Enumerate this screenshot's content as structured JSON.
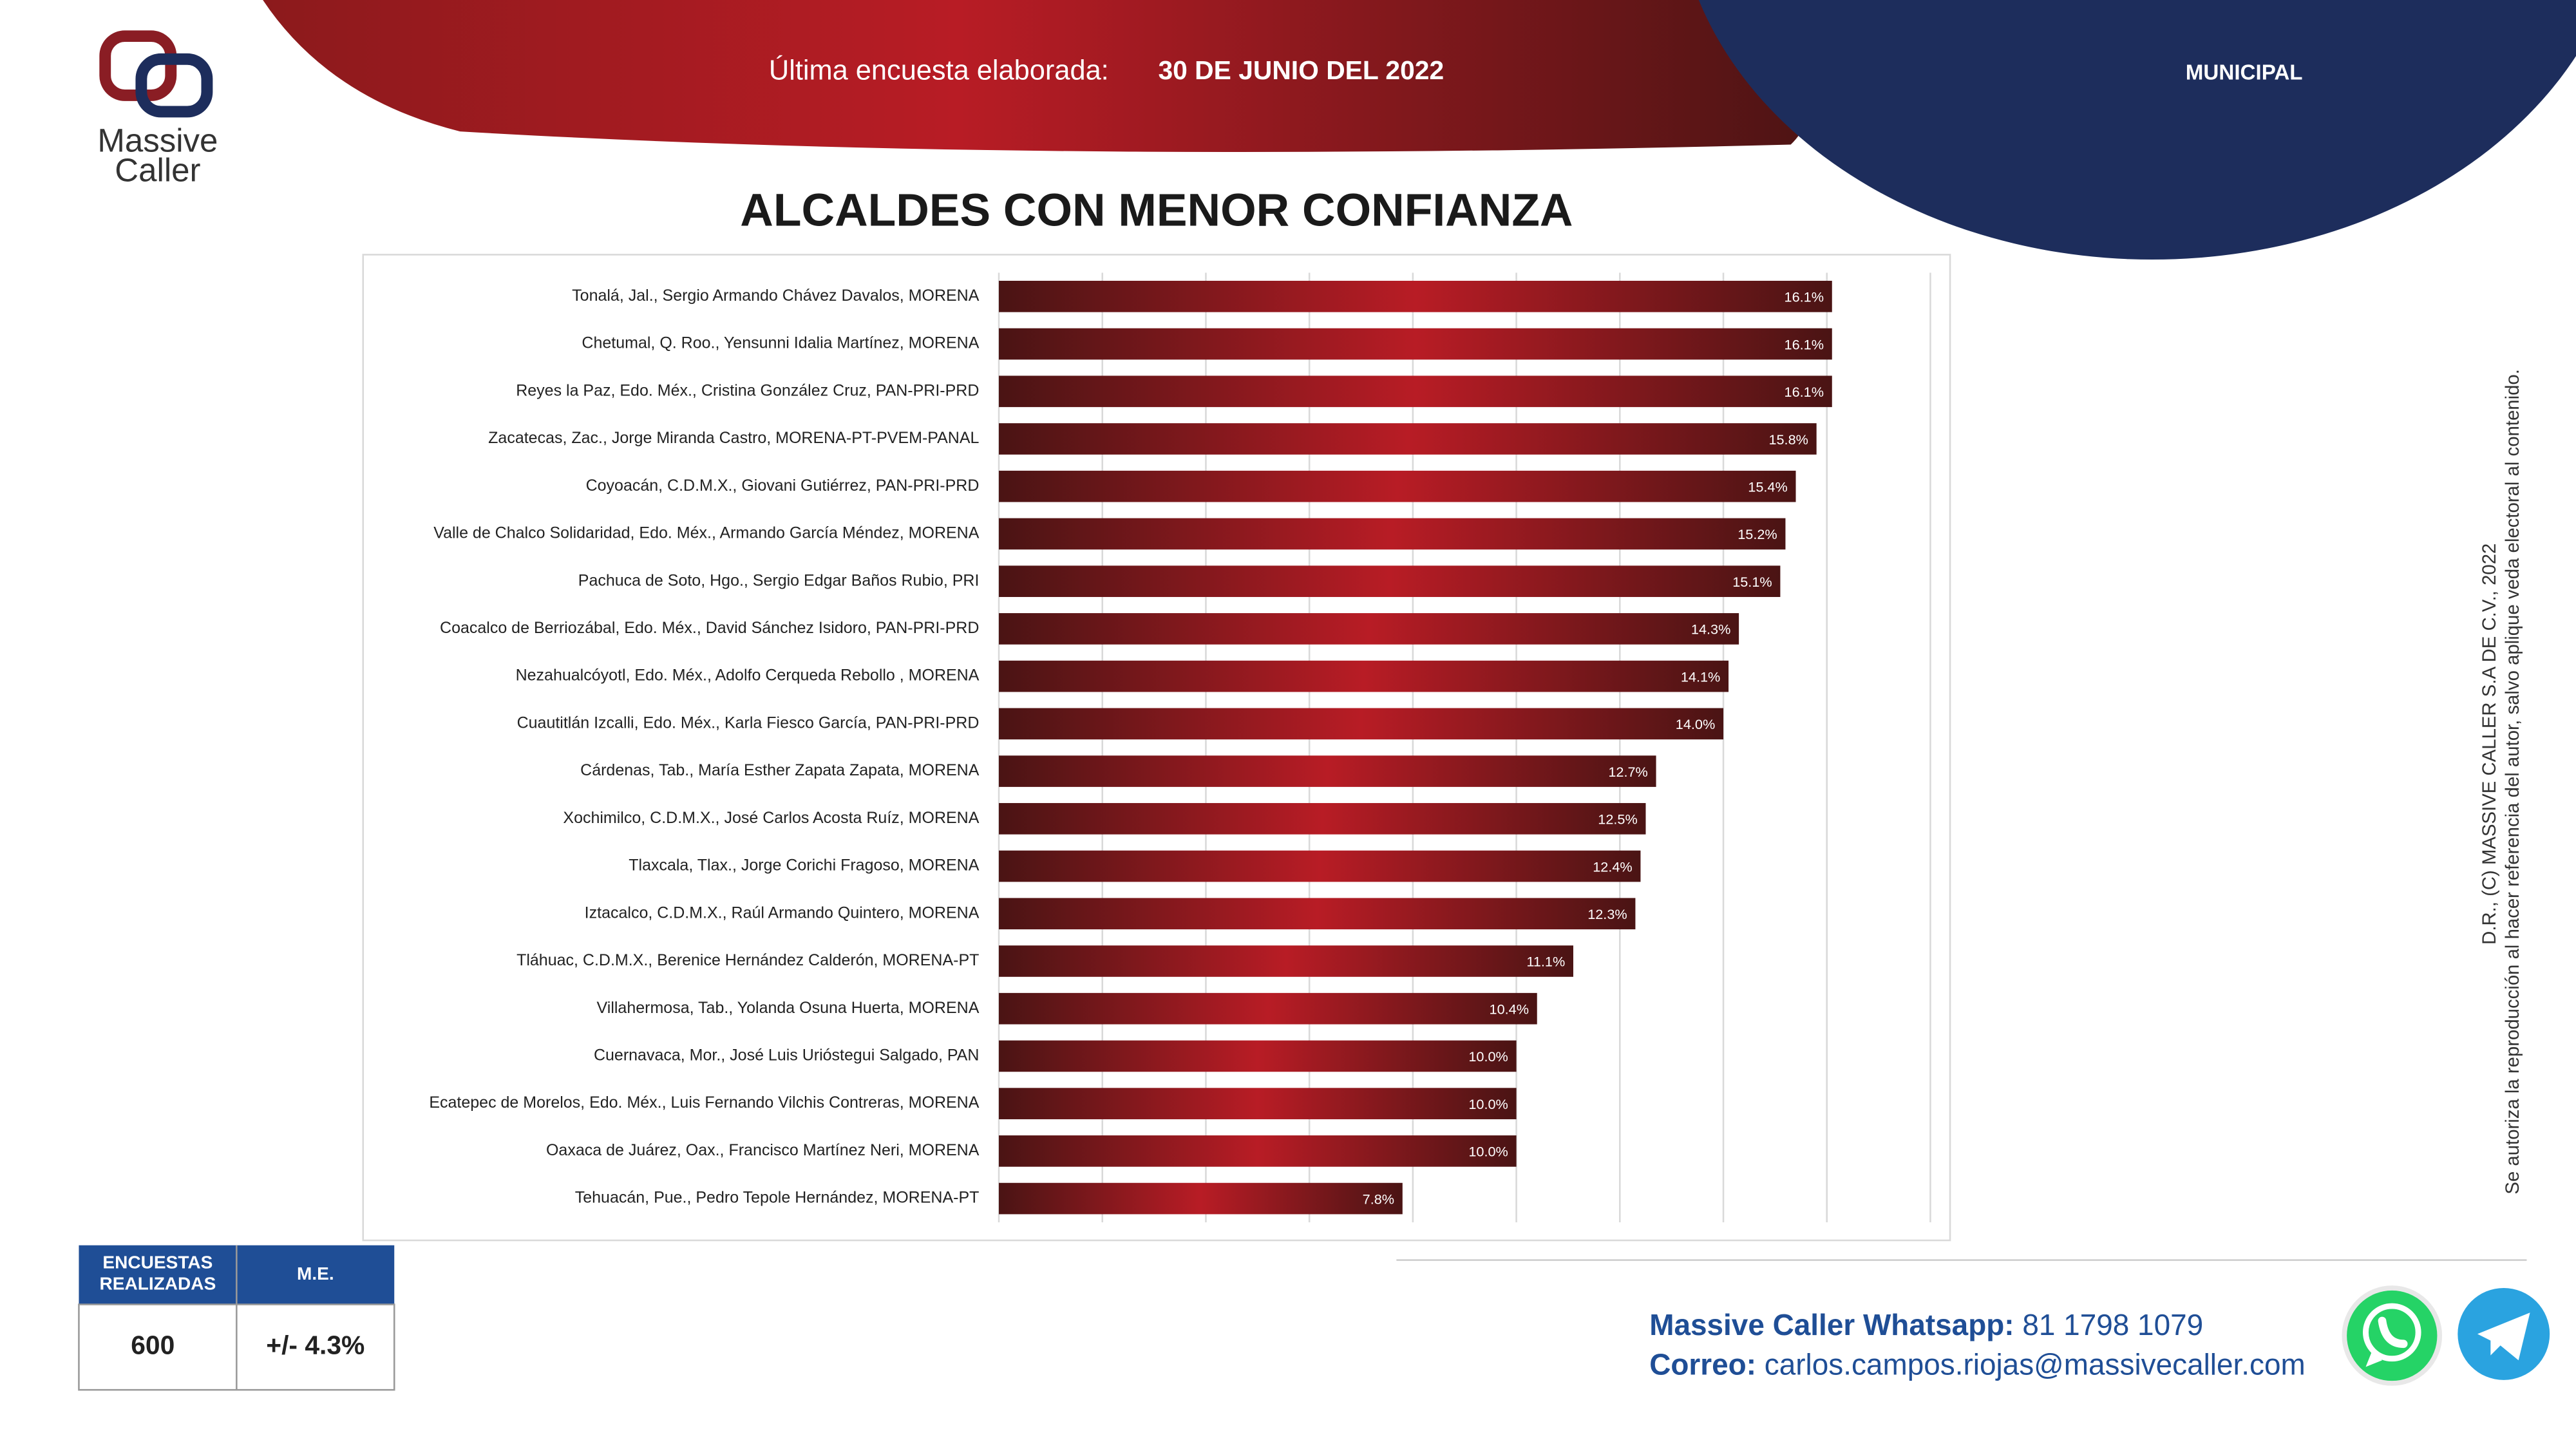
{
  "header": {
    "survey_label": "Última encuesta elaborada:",
    "survey_date": "30 DE JUNIO DEL 2022",
    "section": "MUNICIPAL"
  },
  "logo": {
    "line1": "Massive",
    "line2": "Caller"
  },
  "chart_data": {
    "type": "hbar",
    "title": "ALCALDES CON MENOR CONFIANZA",
    "categories": [
      "Tonalá, Jal., Sergio Armando Chávez Davalos, MORENA",
      "Chetumal, Q. Roo., Yensunni Idalia Martínez, MORENA",
      "Reyes la Paz, Edo. Méx., Cristina González Cruz, PAN-PRI-PRD",
      "Zacatecas, Zac., Jorge Miranda Castro, MORENA-PT-PVEM-PANAL",
      "Coyoacán, C.D.M.X., Giovani Gutiérrez, PAN-PRI-PRD",
      "Valle de Chalco Solidaridad, Edo. Méx., Armando García Méndez, MORENA",
      "Pachuca de Soto, Hgo., Sergio Edgar Baños Rubio, PRI",
      "Coacalco de Berriozábal, Edo. Méx., David Sánchez Isidoro, PAN-PRI-PRD",
      "Nezahualcóyotl, Edo. Méx., Adolfo Cerqueda Rebollo , MORENA",
      "Cuautitlán Izcalli, Edo. Méx., Karla Fiesco García, PAN-PRI-PRD",
      "Cárdenas, Tab., María Esther Zapata Zapata, MORENA",
      "Xochimilco, C.D.M.X., José Carlos Acosta Ruíz, MORENA",
      "Tlaxcala, Tlax., Jorge Corichi Fragoso, MORENA",
      "Iztacalco, C.D.M.X., Raúl Armando Quintero, MORENA",
      "Tláhuac, C.D.M.X., Berenice Hernández Calderón, MORENA-PT",
      "Villahermosa, Tab., Yolanda Osuna Huerta, MORENA",
      "Cuernavaca, Mor., José Luis Urióstegui Salgado, PAN",
      "Ecatepec de Morelos, Edo. Méx., Luis Fernando Vilchis Contreras, MORENA",
      "Oaxaca de Juárez, Oax., Francisco Martínez Neri, MORENA",
      "Tehuacán, Pue., Pedro Tepole Hernández, MORENA-PT"
    ],
    "values": [
      16.1,
      16.1,
      16.1,
      15.8,
      15.4,
      15.2,
      15.1,
      14.3,
      14.1,
      14.0,
      12.7,
      12.5,
      12.4,
      12.3,
      11.1,
      10.4,
      10.0,
      10.0,
      10.0,
      7.8
    ],
    "value_labels": [
      "16.1%",
      "16.1%",
      "16.1%",
      "15.8%",
      "15.4%",
      "15.2%",
      "15.1%",
      "14.3%",
      "14.1%",
      "14.0%",
      "12.7%",
      "12.5%",
      "12.4%",
      "12.3%",
      "11.1%",
      "10.4%",
      "10.0%",
      "10.0%",
      "10.0%",
      "7.8%"
    ],
    "color": "#b81c25",
    "xlim": [
      0,
      18
    ],
    "xticks": [
      0,
      2,
      4,
      6,
      8,
      10,
      12,
      14,
      16,
      18
    ],
    "grid": true
  },
  "copyright": {
    "line1": "D.R., (C) MASSIVE CALLER S.A DE C.V., 2022",
    "line2": "Se autoriza la reproducción al hacer referencia del autor, salvo aplique veda electoral al contenido."
  },
  "table": {
    "headers": [
      "ENCUESTAS REALIZADAS",
      "M.E."
    ],
    "rows": [
      [
        "600",
        "+/- 4.3%"
      ]
    ]
  },
  "footer": {
    "whatsapp_label": "Massive Caller Whatsapp:",
    "whatsapp": "81 1798 1079",
    "email_label": "Correo:",
    "email": "carlos.campos.riojas@massivecaller.com"
  }
}
